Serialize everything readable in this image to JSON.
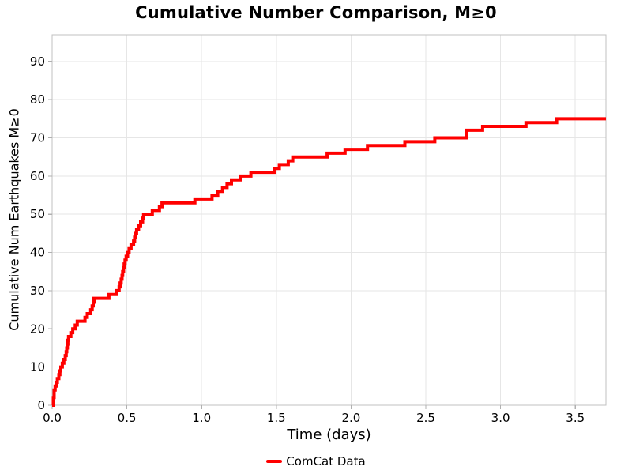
{
  "chart_data": {
    "type": "line",
    "subtype": "step-post",
    "title": "Cumulative Number Comparison, M≥0",
    "xlabel": "Time (days)",
    "ylabel": "Cumulative Num Earthquakes M≥0",
    "xlim": [
      0,
      3.705
    ],
    "ylim": [
      0,
      97
    ],
    "x_ticks": [
      0.0,
      0.5,
      1.0,
      1.5,
      2.0,
      2.5,
      3.0,
      3.5
    ],
    "x_tick_labels": [
      "0.0",
      "0.5",
      "1.0",
      "1.5",
      "2.0",
      "2.5",
      "3.0",
      "3.5"
    ],
    "y_ticks": [
      0,
      10,
      20,
      30,
      40,
      50,
      60,
      70,
      80,
      90
    ],
    "y_tick_labels": [
      "0",
      "10",
      "20",
      "30",
      "40",
      "50",
      "60",
      "70",
      "80",
      "90"
    ],
    "grid": true,
    "legend_position": "bottom-center",
    "series": [
      {
        "name": "ComCat Data",
        "color": "#ff0000",
        "line_width": 4,
        "step": "post",
        "points": [
          [
            0.0,
            0
          ],
          [
            0.008,
            2
          ],
          [
            0.013,
            4
          ],
          [
            0.02,
            5
          ],
          [
            0.028,
            6
          ],
          [
            0.035,
            7
          ],
          [
            0.045,
            8
          ],
          [
            0.052,
            9
          ],
          [
            0.058,
            10
          ],
          [
            0.068,
            11
          ],
          [
            0.078,
            12
          ],
          [
            0.088,
            13
          ],
          [
            0.094,
            14
          ],
          [
            0.098,
            15
          ],
          [
            0.102,
            16
          ],
          [
            0.105,
            17
          ],
          [
            0.11,
            18
          ],
          [
            0.125,
            19
          ],
          [
            0.138,
            20
          ],
          [
            0.155,
            21
          ],
          [
            0.168,
            22
          ],
          [
            0.22,
            23
          ],
          [
            0.235,
            24
          ],
          [
            0.258,
            25
          ],
          [
            0.268,
            26
          ],
          [
            0.275,
            27
          ],
          [
            0.28,
            28
          ],
          [
            0.38,
            29
          ],
          [
            0.43,
            30
          ],
          [
            0.448,
            31
          ],
          [
            0.455,
            32
          ],
          [
            0.462,
            33
          ],
          [
            0.468,
            34
          ],
          [
            0.472,
            35
          ],
          [
            0.478,
            36
          ],
          [
            0.482,
            37
          ],
          [
            0.488,
            38
          ],
          [
            0.495,
            39
          ],
          [
            0.505,
            40
          ],
          [
            0.515,
            41
          ],
          [
            0.528,
            42
          ],
          [
            0.545,
            43
          ],
          [
            0.552,
            44
          ],
          [
            0.558,
            45
          ],
          [
            0.565,
            46
          ],
          [
            0.578,
            47
          ],
          [
            0.592,
            48
          ],
          [
            0.605,
            49
          ],
          [
            0.612,
            50
          ],
          [
            0.67,
            51
          ],
          [
            0.718,
            52
          ],
          [
            0.735,
            53
          ],
          [
            0.955,
            54
          ],
          [
            1.07,
            55
          ],
          [
            1.108,
            56
          ],
          [
            1.14,
            57
          ],
          [
            1.17,
            58
          ],
          [
            1.2,
            59
          ],
          [
            1.258,
            60
          ],
          [
            1.33,
            61
          ],
          [
            1.49,
            62
          ],
          [
            1.52,
            63
          ],
          [
            1.58,
            64
          ],
          [
            1.61,
            65
          ],
          [
            1.84,
            66
          ],
          [
            1.96,
            67
          ],
          [
            2.11,
            68
          ],
          [
            2.36,
            69
          ],
          [
            2.56,
            70
          ],
          [
            2.77,
            72
          ],
          [
            2.88,
            73
          ],
          [
            3.17,
            74
          ],
          [
            3.375,
            75
          ],
          [
            3.705,
            75
          ]
        ]
      }
    ],
    "style": {
      "grid_color": "#e6e6e6",
      "spine_color": "#c0c0c0",
      "tick_color": "#b0b0b0",
      "background": "#ffffff",
      "text_color": "#000000"
    }
  }
}
